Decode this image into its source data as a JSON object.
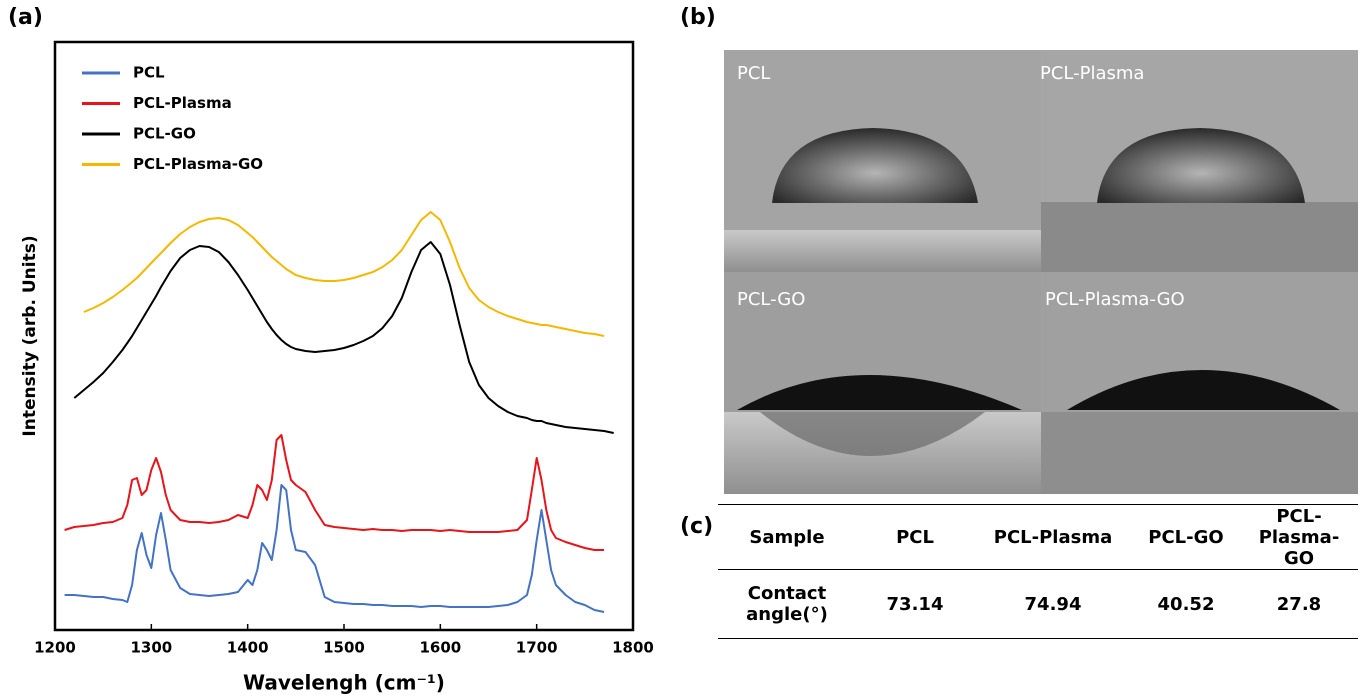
{
  "panel_labels": [
    "(a)",
    "(b)",
    "(c)"
  ],
  "chart_data": {
    "type": "line",
    "xlabel": "Wavelengh (cm⁻¹)",
    "ylabel": "Intensity (arb. Units)",
    "xlim": [
      1200,
      1800
    ],
    "xticks": [
      1200,
      1300,
      1400,
      1500,
      1600,
      1700,
      1800
    ],
    "ylim": [
      0,
      588
    ],
    "legend": "top-left",
    "x": [
      1210,
      1220,
      1230,
      1240,
      1250,
      1260,
      1270,
      1275,
      1280,
      1285,
      1290,
      1295,
      1300,
      1305,
      1310,
      1315,
      1320,
      1330,
      1340,
      1350,
      1360,
      1370,
      1380,
      1390,
      1400,
      1405,
      1410,
      1415,
      1420,
      1425,
      1430,
      1435,
      1440,
      1445,
      1450,
      1460,
      1470,
      1480,
      1490,
      1500,
      1510,
      1520,
      1530,
      1540,
      1550,
      1560,
      1570,
      1580,
      1590,
      1600,
      1610,
      1620,
      1630,
      1640,
      1650,
      1660,
      1670,
      1680,
      1690,
      1695,
      1700,
      1705,
      1710,
      1715,
      1720,
      1730,
      1740,
      1750,
      1760,
      1770,
      1780
    ],
    "series": [
      {
        "name": "PCL",
        "color": "#4472c4",
        "values": [
          35,
          35,
          34,
          33,
          33,
          31,
          30,
          28,
          45,
          80,
          97,
          75,
          62,
          95,
          117,
          90,
          60,
          42,
          36,
          35,
          34,
          35,
          36,
          38,
          50,
          45,
          60,
          87,
          80,
          70,
          100,
          145,
          140,
          100,
          80,
          78,
          65,
          33,
          28,
          27,
          26,
          26,
          25,
          25,
          24,
          24,
          24,
          23,
          24,
          24,
          23,
          23,
          23,
          23,
          23,
          24,
          25,
          28,
          35,
          55,
          90,
          120,
          90,
          60,
          45,
          35,
          28,
          25,
          20,
          18,
          null
        ]
      },
      {
        "name": "PCL-Plasma",
        "color": "#e8141b",
        "values": [
          100,
          103,
          104,
          105,
          107,
          108,
          112,
          125,
          150,
          152,
          135,
          140,
          160,
          172,
          158,
          135,
          120,
          110,
          108,
          108,
          107,
          108,
          110,
          115,
          112,
          125,
          145,
          140,
          130,
          150,
          190,
          195,
          170,
          150,
          145,
          138,
          120,
          105,
          103,
          102,
          101,
          100,
          101,
          100,
          100,
          99,
          100,
          100,
          100,
          99,
          100,
          99,
          98,
          98,
          98,
          98,
          99,
          100,
          110,
          140,
          172,
          150,
          120,
          100,
          92,
          88,
          85,
          82,
          80,
          80,
          null
        ]
      },
      {
        "name": "PCL-GO",
        "color": "#000000",
        "values": [
          null,
          232,
          240,
          248,
          257,
          268,
          280,
          287,
          294,
          302,
          310,
          318,
          326,
          334,
          343,
          351,
          359,
          372,
          380,
          384,
          383,
          378,
          368,
          355,
          340,
          332,
          324,
          316,
          308,
          301,
          295,
          290,
          286,
          283,
          281,
          279,
          278,
          279,
          280,
          282,
          285,
          289,
          294,
          302,
          314,
          332,
          358,
          380,
          388,
          376,
          345,
          305,
          268,
          245,
          232,
          224,
          218,
          214,
          212,
          210,
          209,
          209,
          207,
          206,
          205,
          203,
          202,
          201,
          200,
          199,
          197
        ]
      },
      {
        "name": "PCL-Plasma-GO",
        "color": "#f5b800",
        "values": [
          null,
          null,
          318,
          322,
          327,
          333,
          340,
          344,
          348,
          352,
          357,
          362,
          367,
          372,
          377,
          382,
          387,
          396,
          403,
          408,
          411,
          412,
          410,
          405,
          397,
          393,
          388,
          383,
          378,
          373,
          369,
          365,
          361,
          358,
          355,
          352,
          350,
          349,
          349,
          350,
          352,
          355,
          358,
          363,
          370,
          380,
          395,
          410,
          418,
          410,
          388,
          362,
          342,
          330,
          323,
          318,
          314,
          311,
          308,
          307,
          306,
          305,
          305,
          304,
          303,
          301,
          299,
          297,
          296,
          294,
          null
        ]
      }
    ]
  },
  "images": [
    "PCL",
    "PCL-Plasma",
    "PCL-GO",
    "PCL-Plasma-GO"
  ],
  "table": {
    "header": [
      "Sample",
      "PCL",
      "PCL-Plasma",
      "PCL-GO",
      "PCL-Plasma-GO"
    ],
    "rows": [
      [
        "Contact angle(°)",
        73.14,
        74.94,
        40.52,
        27.8
      ]
    ]
  }
}
